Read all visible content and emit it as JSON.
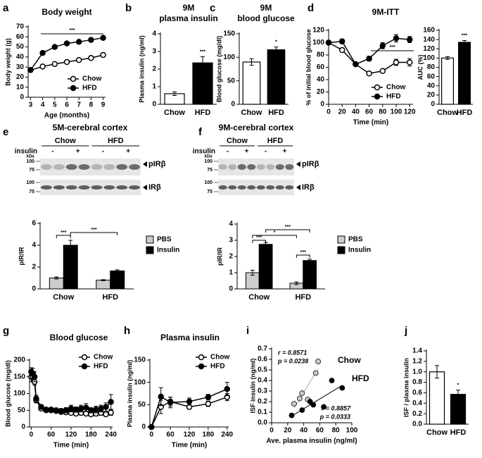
{
  "chart_data": [
    {
      "panel": "a",
      "type": "line",
      "title": "Body weight",
      "ylabel": "Body weight (g)",
      "xlabel": "Age (months)",
      "x": [
        3,
        4,
        5,
        6,
        7,
        8,
        9
      ],
      "xlim": [
        2.8,
        9.2
      ],
      "xticks": [
        3,
        4,
        5,
        6,
        7,
        8,
        9
      ],
      "ylim": [
        0,
        70
      ],
      "yticks": [
        0,
        10,
        20,
        30,
        40,
        50,
        60,
        70
      ],
      "legend": "lower right",
      "annotations": [
        "***"
      ],
      "series": [
        {
          "name": "Chow",
          "color": "#000000",
          "marker_fill": "#ffffff",
          "values": [
            27,
            30.5,
            33,
            35,
            37,
            39,
            42
          ],
          "errors": [
            0.5,
            0.8,
            1,
            1,
            1.2,
            1.5,
            2
          ]
        },
        {
          "name": "HFD",
          "color": "#000000",
          "marker_fill": "#000000",
          "values": [
            27,
            44,
            50,
            53.5,
            55,
            57,
            59
          ],
          "errors": [
            0.5,
            1,
            1,
            1,
            1.2,
            1,
            1
          ]
        }
      ]
    },
    {
      "panel": "b",
      "type": "bar",
      "title": [
        "9M",
        "plasma insulin"
      ],
      "ylabel": "Plasma insulin (ng/ml)",
      "categories": [
        "Chow",
        "HFD"
      ],
      "values": [
        0.6,
        2.35
      ],
      "errors": [
        0.1,
        0.35
      ],
      "colors": [
        "#ffffff",
        "#000000"
      ],
      "ylim": [
        0,
        4
      ],
      "yticks": [
        0,
        1,
        2,
        3,
        4
      ],
      "annotations": [
        "***"
      ]
    },
    {
      "panel": "c",
      "type": "bar",
      "title": [
        "9M",
        "blood glucose"
      ],
      "ylabel": "Blood glucose (mg/dl)",
      "categories": [
        "Chow",
        "HFD"
      ],
      "values": [
        90,
        116
      ],
      "errors": [
        7,
        6
      ],
      "colors": [
        "#ffffff",
        "#000000"
      ],
      "ylim": [
        0,
        150
      ],
      "yticks": [
        0,
        50,
        100,
        150
      ],
      "annotations": [
        "*"
      ]
    },
    {
      "panel": "d",
      "type": "line",
      "title": "9M-ITT",
      "ylabel": "% of initial blood glucose",
      "xlabel": "Time (min)",
      "x": [
        0,
        20,
        40,
        60,
        80,
        100,
        120
      ],
      "xlim": [
        0,
        125
      ],
      "xticks": [
        0,
        20,
        40,
        60,
        80,
        100,
        120
      ],
      "ylim": [
        0,
        120
      ],
      "yticks": [
        0,
        20,
        40,
        60,
        80,
        100,
        120
      ],
      "legend": "lower right",
      "annotations": [
        "***"
      ],
      "series": [
        {
          "name": "Chow",
          "color": "#000000",
          "marker_fill": "#ffffff",
          "values": [
            100,
            88,
            65,
            50,
            54,
            68,
            68
          ],
          "errors": [
            2,
            3,
            3,
            2,
            2,
            5,
            6
          ]
        },
        {
          "name": "HFD",
          "color": "#000000",
          "marker_fill": "#000000",
          "values": [
            100,
            102,
            65,
            74,
            95,
            107,
            105
          ],
          "errors": [
            2,
            4,
            2,
            4,
            5,
            6,
            5
          ]
        }
      ]
    },
    {
      "type": "bar",
      "ylabel": "AUC (%)",
      "categories": [
        "Chow",
        "HFD"
      ],
      "values": [
        100,
        134
      ],
      "errors": [
        3,
        4
      ],
      "colors": [
        "#ffffff",
        "#000000"
      ],
      "ylim": [
        0,
        160
      ],
      "yticks": [
        0,
        20,
        40,
        60,
        80,
        100,
        120,
        140,
        160
      ],
      "annotations": [
        "***"
      ]
    },
    {
      "panel": "e",
      "type": "blot",
      "title": "5M-cerebral cortex",
      "groups": [
        "Chow",
        "HFD"
      ],
      "treatment_label": "insulin",
      "treatments": [
        "-",
        "+",
        "-",
        "+"
      ],
      "kda_label": "kDa",
      "markers": [
        100,
        75,
        100,
        75
      ],
      "bands": [
        "pIRβ",
        "IRβ"
      ]
    },
    {
      "type": "bar",
      "ylabel": "pIR/IR",
      "categories": [
        "Chow",
        "HFD"
      ],
      "legend": "right",
      "series": [
        {
          "name": "PBS",
          "color": "#cccccc",
          "values": [
            1.0,
            0.8
          ],
          "errors": [
            0.1,
            0.05
          ]
        },
        {
          "name": "Insulin",
          "color": "#000000",
          "values": [
            4.0,
            1.65
          ],
          "errors": [
            0.45,
            0.1
          ]
        }
      ],
      "ylim": [
        0,
        6
      ],
      "yticks": [
        0,
        2,
        4,
        6
      ],
      "annotations": [
        "***",
        "***"
      ]
    },
    {
      "panel": "f",
      "type": "blot",
      "title": "9M-cerebral cortex",
      "groups": [
        "Chow",
        "HFD"
      ],
      "treatment_label": "insulin",
      "treatments": [
        "-",
        "+",
        "-",
        "+"
      ],
      "kda_label": "kDa",
      "markers": [
        100,
        75,
        100,
        75
      ],
      "bands": [
        "pIRβ",
        "IRβ"
      ]
    },
    {
      "type": "bar",
      "ylabel": "pIR/IR",
      "categories": [
        "Chow",
        "HFD"
      ],
      "legend": "right",
      "series": [
        {
          "name": "PBS",
          "color": "#cccccc",
          "values": [
            1.0,
            0.35
          ],
          "errors": [
            0.15,
            0.08
          ]
        },
        {
          "name": "Insulin",
          "color": "#000000",
          "values": [
            2.75,
            1.75
          ],
          "errors": [
            0.12,
            0.08
          ]
        }
      ],
      "ylim": [
        0,
        4
      ],
      "yticks": [
        0,
        1,
        2,
        3,
        4
      ],
      "annotations": [
        "***",
        "*",
        "***",
        "***"
      ]
    },
    {
      "panel": "g",
      "type": "line",
      "title": "Blood glucose",
      "ylabel": "Blood glucose (mg/dl)",
      "xlabel": "Time (min)",
      "x": [
        0,
        5,
        10,
        15,
        30,
        45,
        60,
        75,
        90,
        105,
        120,
        135,
        150,
        165,
        180,
        195,
        210,
        225,
        240
      ],
      "xlim": [
        -5,
        245
      ],
      "xticks": [
        0,
        60,
        120,
        180,
        240
      ],
      "ylim": [
        0,
        200
      ],
      "yticks": [
        0,
        50,
        100,
        150,
        200
      ],
      "legend": "upper right",
      "series": [
        {
          "name": "Chow",
          "color": "#000000",
          "marker_fill": "#ffffff",
          "values": [
            150,
            150,
            135,
            80,
            55,
            50,
            50,
            48,
            45,
            44,
            42,
            40,
            42,
            40,
            38,
            40,
            42,
            38,
            43
          ],
          "errors": [
            15,
            10,
            10,
            8,
            5,
            5,
            5,
            5,
            5,
            5,
            5,
            6,
            6,
            6,
            6,
            7,
            7,
            6,
            8
          ]
        },
        {
          "name": "HFD",
          "color": "#000000",
          "marker_fill": "#000000",
          "values": [
            165,
            160,
            150,
            85,
            60,
            52,
            52,
            50,
            48,
            50,
            55,
            52,
            55,
            58,
            50,
            52,
            55,
            60,
            75
          ],
          "errors": [
            12,
            15,
            15,
            10,
            6,
            6,
            6,
            6,
            7,
            8,
            10,
            8,
            10,
            12,
            8,
            10,
            10,
            12,
            22
          ]
        }
      ]
    },
    {
      "panel": "h",
      "type": "line",
      "title": "Plasma insulin",
      "ylabel": "Plasma insulin (ng/ml)",
      "xlabel": "Time (min)",
      "x": [
        0,
        30,
        60,
        120,
        180,
        240
      ],
      "xlim": [
        -5,
        245
      ],
      "xticks": [
        0,
        60,
        120,
        180,
        240
      ],
      "ylim": [
        0,
        150
      ],
      "yticks": [
        0,
        50,
        100,
        150
      ],
      "legend": "upper right",
      "series": [
        {
          "name": "Chow",
          "color": "#000000",
          "marker_fill": "#ffffff",
          "values": [
            0,
            45,
            57,
            45,
            52,
            67
          ],
          "errors": [
            2,
            15,
            10,
            5,
            6,
            8
          ]
        },
        {
          "name": "HFD",
          "color": "#000000",
          "marker_fill": "#000000",
          "values": [
            0,
            68,
            55,
            57,
            67,
            85
          ],
          "errors": [
            2,
            20,
            12,
            8,
            6,
            15
          ]
        }
      ]
    },
    {
      "panel": "i",
      "type": "scatter",
      "ylabel": "ISF insulin (ng/ml)",
      "xlabel": "Ave. plasma insulin (ng/ml)",
      "xlim": [
        0,
        100
      ],
      "xticks": [
        0,
        20,
        40,
        60,
        80,
        100
      ],
      "ylim": [
        0,
        0.7
      ],
      "yticks": [
        {
          "value": 0,
          "label": "0.0"
        },
        0.1,
        0.2,
        0.3,
        0.4,
        0.5,
        0.6,
        0.7
      ],
      "annotations": [
        "r = 0.8571",
        "p = 0.0238",
        "r = 0.8857",
        "p = 0.0333"
      ],
      "series": [
        {
          "name": "Chow",
          "color": "#c8c8c8",
          "x": [
            28,
            35,
            38,
            45,
            55,
            58
          ],
          "values": [
            0.18,
            0.23,
            0.28,
            0.22,
            0.47,
            0.58
          ]
        },
        {
          "name": "HFD",
          "color": "#000000",
          "x": [
            25,
            38,
            48,
            52,
            65,
            75,
            88
          ],
          "values": [
            0.07,
            0.12,
            0.2,
            0.17,
            0.15,
            0.4,
            0.33
          ]
        }
      ]
    },
    {
      "panel": "j",
      "type": "bar",
      "ylabel": "ISF / plasma insulin",
      "categories": [
        "Chow",
        "HFD"
      ],
      "values": [
        1.0,
        0.57
      ],
      "errors": [
        0.12,
        0.08
      ],
      "colors": [
        "#ffffff",
        "#000000"
      ],
      "ylim": [
        0,
        1.4
      ],
      "yticks": [
        {
          "value": 0,
          "label": "0.0"
        },
        0.2,
        0.4,
        0.6,
        0.8,
        {
          "value": 1,
          "label": "1.0"
        },
        1.2,
        1.4
      ],
      "annotations": [
        "*"
      ]
    }
  ]
}
